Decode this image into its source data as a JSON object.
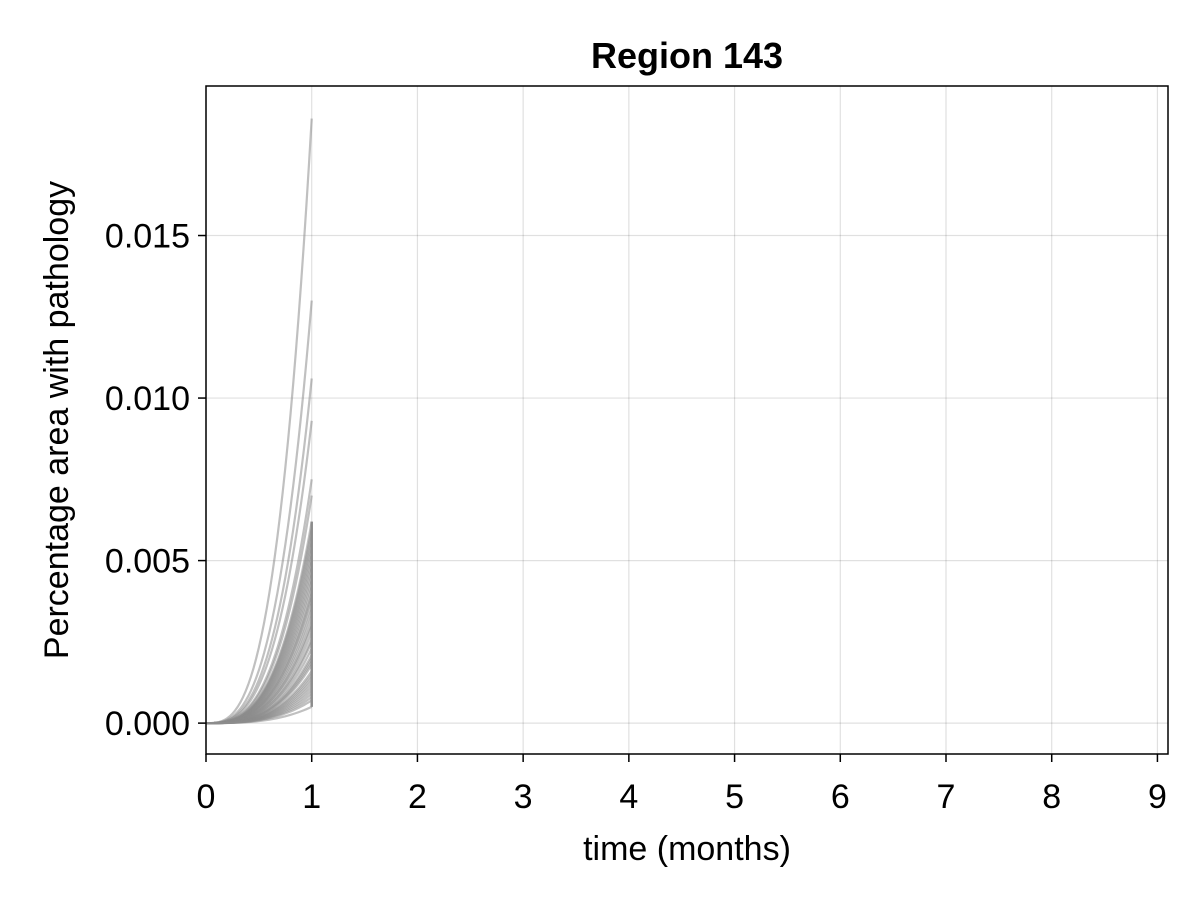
{
  "chart_data": {
    "type": "line",
    "title": "Region 143",
    "xlabel": "time (months)",
    "ylabel": "Percentage area with pathology",
    "xlim": [
      0,
      9.1
    ],
    "ylim": [
      -0.00095,
      0.0196
    ],
    "x_ticks": [
      0,
      1,
      2,
      3,
      4,
      5,
      6,
      7,
      8,
      9
    ],
    "y_ticks": [
      0.0,
      0.005,
      0.01,
      0.015
    ],
    "x_tick_labels": [
      "0",
      "1",
      "2",
      "3",
      "4",
      "5",
      "6",
      "7",
      "8",
      "9"
    ],
    "y_tick_labels": [
      "0.000",
      "0.005",
      "0.010",
      "0.015"
    ],
    "grid": true,
    "legend": "none",
    "line_color": "#8c8c8c",
    "x_range_of_series": [
      0,
      1
    ],
    "series_growth_exponent": 3,
    "series_final_values": [
      0.0186,
      0.013,
      0.0106,
      0.0093,
      0.0075,
      0.007,
      0.0062,
      0.006,
      0.0058,
      0.0056,
      0.0054,
      0.0052,
      0.005,
      0.0048,
      0.0046,
      0.0044,
      0.0042,
      0.004,
      0.0039,
      0.0037,
      0.0035,
      0.0033,
      0.0031,
      0.003,
      0.0028,
      0.0026,
      0.0025,
      0.0023,
      0.0021,
      0.002,
      0.0019,
      0.0018,
      0.0016,
      0.0015,
      0.0014,
      0.0013,
      0.0012,
      0.0011,
      0.001,
      0.0009,
      0.0008,
      0.0007,
      0.0005
    ]
  }
}
